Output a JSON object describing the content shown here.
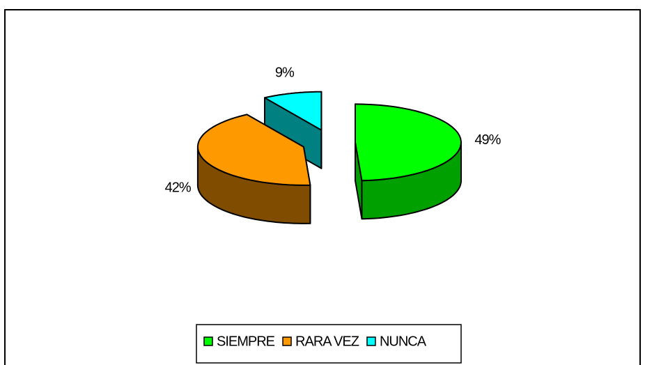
{
  "chart_data": {
    "type": "pie",
    "categories": [
      "SIEMPRE",
      "RARA VEZ",
      "NUNCA"
    ],
    "values": [
      49,
      42,
      9
    ],
    "value_labels": [
      "49%",
      "42%",
      "9%"
    ],
    "colors": [
      "#00ff00",
      "#ff9900",
      "#00ffff"
    ],
    "side_colors": [
      "#00a000",
      "#7f4c00",
      "#008080"
    ],
    "legend": "bottom"
  }
}
